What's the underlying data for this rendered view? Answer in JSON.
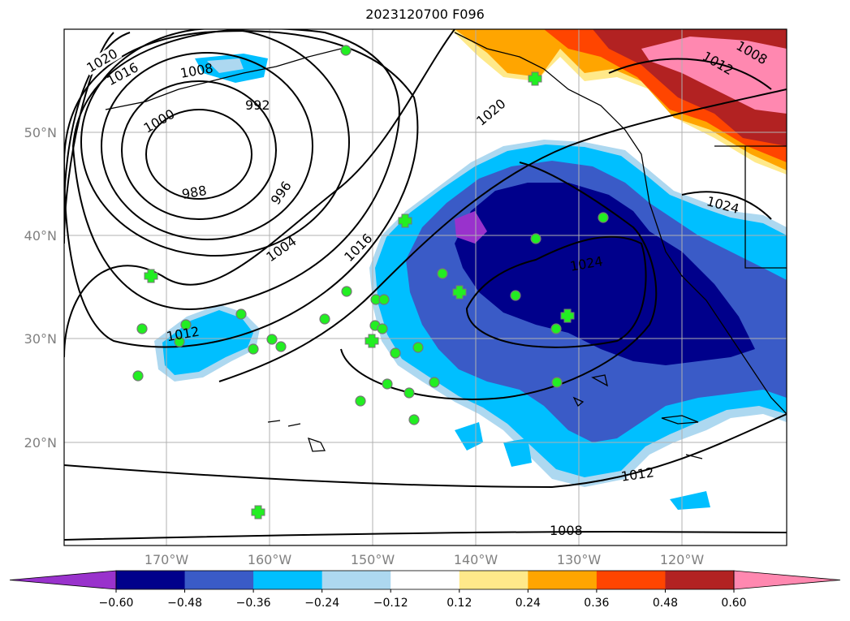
{
  "title": "2023120700 F096",
  "map": {
    "lat_labels": [
      "50°N",
      "40°N",
      "30°N",
      "20°N"
    ],
    "lon_labels": [
      "170°W",
      "160°W",
      "150°W",
      "140°W",
      "130°W",
      "120°W"
    ],
    "contour_labels": [
      "1020",
      "1016",
      "1008",
      "1000",
      "992",
      "988",
      "996",
      "1004",
      "1016",
      "1012",
      "1020",
      "1024",
      "1024",
      "1012",
      "1008",
      "1012",
      "1008"
    ]
  },
  "colorbar": {
    "ticks": [
      "−0.60",
      "−0.48",
      "−0.36",
      "−0.24",
      "−0.12",
      "0.12",
      "0.24",
      "0.36",
      "0.48",
      "0.60"
    ],
    "colors": [
      "#9932CC",
      "#00008B",
      "#3A5BC7",
      "#00BFFF",
      "#ADD8F0",
      "#FFFFFF",
      "#FFE98A",
      "#FFA500",
      "#FF4500",
      "#B22222",
      "#FF88B0"
    ]
  }
}
